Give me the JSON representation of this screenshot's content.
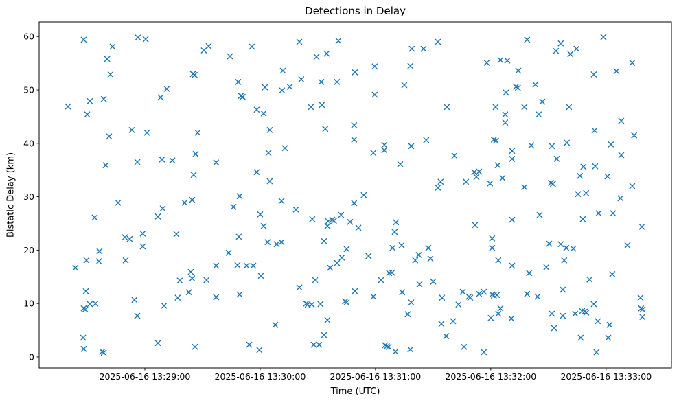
{
  "figure": {
    "background_color": "#ffffff",
    "text_color": "#000000",
    "spine_color": "#000000"
  },
  "chart": {
    "title": "Detections in Delay",
    "xlabel": "Time (UTC)",
    "ylabel": "Bistatic Delay (km)"
  },
  "chart_data": {
    "type": "scatter",
    "title": "Detections in Delay",
    "xlabel": "Time (UTC)",
    "ylabel": "Bistatic Delay (km)",
    "marker": "x",
    "marker_color": "#1f77b4",
    "grid": false,
    "legend": null,
    "x_unit": "seconds after 2025-06-16 13:28:00 UTC",
    "xlim": [
      5,
      334
    ],
    "ylim": [
      -2.06,
      62.73
    ],
    "x_ticks": [
      {
        "value": 60,
        "label": "2025-06-16 13:29:00"
      },
      {
        "value": 120,
        "label": "2025-06-16 13:30:00"
      },
      {
        "value": 180,
        "label": "2025-06-16 13:31:00"
      },
      {
        "value": 240,
        "label": "2025-06-16 13:32:00"
      },
      {
        "value": 300,
        "label": "2025-06-16 13:33:00"
      }
    ],
    "y_ticks": [
      {
        "value": 0,
        "label": "0"
      },
      {
        "value": 10,
        "label": "10"
      },
      {
        "value": 20,
        "label": "20"
      },
      {
        "value": 30,
        "label": "30"
      },
      {
        "value": 40,
        "label": "40"
      },
      {
        "value": 50,
        "label": "50"
      },
      {
        "value": 60,
        "label": "60"
      }
    ],
    "points": [
      [
        28.2,
        59.4
      ],
      [
        43.2,
        58.1
      ],
      [
        40.4,
        55.8
      ],
      [
        42.1,
        52.9
      ],
      [
        56.4,
        59.8
      ],
      [
        60.4,
        59.5
      ],
      [
        85.0,
        53.0
      ],
      [
        85.9,
        52.8
      ],
      [
        71.4,
        50.2
      ],
      [
        68.2,
        48.6
      ],
      [
        31.4,
        47.9
      ],
      [
        38.6,
        48.3
      ],
      [
        20.0,
        46.9
      ],
      [
        30.0,
        45.4
      ],
      [
        53.2,
        42.5
      ],
      [
        61.1,
        42.0
      ],
      [
        41.4,
        41.3
      ],
      [
        86.4,
        38.0
      ],
      [
        56.1,
        36.5
      ],
      [
        68.9,
        37.0
      ],
      [
        74.3,
        36.8
      ],
      [
        39.6,
        35.9
      ],
      [
        85.4,
        34.1
      ],
      [
        90.7,
        57.4
      ],
      [
        93.2,
        58.2
      ],
      [
        104.3,
        56.3
      ],
      [
        115.7,
        58.1
      ],
      [
        140.4,
        59.0
      ],
      [
        160.7,
        59.2
      ],
      [
        149.3,
        56.2
      ],
      [
        154.6,
        56.8
      ],
      [
        131.8,
        53.6
      ],
      [
        108.6,
        51.5
      ],
      [
        122.5,
        50.5
      ],
      [
        131.4,
        49.9
      ],
      [
        135.4,
        50.6
      ],
      [
        141.4,
        52.0
      ],
      [
        151.8,
        51.5
      ],
      [
        160.0,
        51.5
      ],
      [
        110.0,
        48.9
      ],
      [
        110.9,
        48.7
      ],
      [
        118.2,
        46.3
      ],
      [
        121.8,
        45.6
      ],
      [
        146.4,
        46.8
      ],
      [
        152.1,
        47.2
      ],
      [
        125.0,
        42.5
      ],
      [
        153.9,
        42.7
      ],
      [
        87.5,
        42.0
      ],
      [
        132.9,
        39.1
      ],
      [
        124.3,
        38.2
      ],
      [
        97.1,
        36.4
      ],
      [
        118.2,
        34.6
      ],
      [
        125.0,
        32.9
      ],
      [
        212.5,
        59.0
      ],
      [
        198.9,
        57.7
      ],
      [
        205.0,
        57.7
      ],
      [
        237.9,
        55.1
      ],
      [
        245.0,
        55.6
      ],
      [
        248.6,
        55.5
      ],
      [
        179.6,
        54.4
      ],
      [
        169.3,
        53.3
      ],
      [
        198.2,
        54.5
      ],
      [
        195.0,
        50.9
      ],
      [
        179.6,
        49.1
      ],
      [
        247.9,
        49.5
      ],
      [
        217.1,
        46.8
      ],
      [
        242.5,
        46.8
      ],
      [
        247.5,
        45.4
      ],
      [
        247.5,
        43.9
      ],
      [
        168.9,
        43.4
      ],
      [
        168.9,
        40.7
      ],
      [
        206.4,
        40.6
      ],
      [
        184.6,
        39.7
      ],
      [
        184.6,
        38.7
      ],
      [
        198.6,
        39.5
      ],
      [
        178.9,
        38.2
      ],
      [
        241.6,
        40.7
      ],
      [
        242.7,
        40.5
      ],
      [
        221.1,
        37.7
      ],
      [
        192.9,
        36.1
      ],
      [
        243.6,
        35.9
      ],
      [
        231.4,
        34.6
      ],
      [
        233.9,
        34.7
      ],
      [
        232.5,
        33.7
      ],
      [
        227.1,
        32.8
      ],
      [
        239.6,
        32.5
      ],
      [
        246.1,
        33.5
      ],
      [
        213.9,
        32.8
      ],
      [
        212.5,
        31.7
      ],
      [
        258.9,
        59.4
      ],
      [
        298.6,
        59.9
      ],
      [
        276.4,
        58.7
      ],
      [
        273.9,
        57.3
      ],
      [
        284.6,
        57.7
      ],
      [
        281.4,
        56.7
      ],
      [
        313.6,
        55.1
      ],
      [
        293.6,
        52.9
      ],
      [
        305.4,
        53.5
      ],
      [
        254.3,
        53.6
      ],
      [
        253.1,
        50.6
      ],
      [
        254.1,
        50.4
      ],
      [
        263.2,
        51.0
      ],
      [
        266.8,
        47.8
      ],
      [
        257.5,
        46.8
      ],
      [
        280.7,
        46.8
      ],
      [
        265.0,
        45.4
      ],
      [
        307.9,
        44.2
      ],
      [
        294.0,
        42.4
      ],
      [
        314.6,
        41.5
      ],
      [
        261.1,
        39.6
      ],
      [
        271.8,
        39.5
      ],
      [
        279.6,
        40.1
      ],
      [
        302.5,
        39.8
      ],
      [
        251.1,
        38.6
      ],
      [
        251.1,
        37.1
      ],
      [
        307.9,
        37.8
      ],
      [
        274.3,
        37.1
      ],
      [
        288.2,
        35.6
      ],
      [
        294.3,
        35.7
      ],
      [
        286.4,
        33.9
      ],
      [
        300.7,
        33.8
      ],
      [
        271.3,
        32.6
      ],
      [
        272.3,
        32.4
      ],
      [
        257.5,
        31.8
      ],
      [
        313.6,
        32.0
      ],
      [
        46.1,
        28.9
      ],
      [
        33.9,
        26.1
      ],
      [
        80.7,
        28.9
      ],
      [
        84.6,
        29.4
      ],
      [
        69.3,
        27.8
      ],
      [
        66.8,
        26.3
      ],
      [
        58.9,
        23.1
      ],
      [
        49.6,
        22.4
      ],
      [
        52.1,
        22.1
      ],
      [
        58.9,
        20.7
      ],
      [
        76.4,
        23.0
      ],
      [
        36.4,
        19.8
      ],
      [
        29.6,
        18.1
      ],
      [
        36.1,
        17.9
      ],
      [
        23.9,
        16.7
      ],
      [
        50.0,
        18.1
      ],
      [
        83.9,
        15.9
      ],
      [
        84.6,
        14.7
      ],
      [
        78.2,
        14.3
      ],
      [
        82.9,
        12.1
      ],
      [
        77.1,
        11.1
      ],
      [
        70.0,
        9.6
      ],
      [
        29.3,
        12.3
      ],
      [
        54.6,
        10.7
      ],
      [
        28.2,
        9.1
      ],
      [
        29.0,
        8.9
      ],
      [
        31.4,
        9.9
      ],
      [
        34.3,
        10.0
      ],
      [
        56.1,
        7.7
      ],
      [
        27.9,
        3.6
      ],
      [
        28.2,
        1.5
      ],
      [
        37.8,
        1.0
      ],
      [
        38.6,
        0.8
      ],
      [
        66.8,
        2.6
      ],
      [
        86.1,
        1.9
      ],
      [
        109.3,
        30.1
      ],
      [
        106.1,
        28.1
      ],
      [
        131.1,
        29.2
      ],
      [
        138.6,
        27.6
      ],
      [
        120.0,
        26.7
      ],
      [
        121.8,
        24.5
      ],
      [
        147.1,
        25.8
      ],
      [
        162.1,
        26.6
      ],
      [
        155.4,
        25.4
      ],
      [
        157.5,
        25.7
      ],
      [
        158.4,
        25.5
      ],
      [
        155.0,
        24.5
      ],
      [
        166.8,
        25.3
      ],
      [
        108.9,
        22.5
      ],
      [
        123.9,
        21.5
      ],
      [
        128.6,
        21.1
      ],
      [
        131.1,
        21.5
      ],
      [
        153.2,
        21.7
      ],
      [
        103.6,
        19.5
      ],
      [
        97.1,
        17.1
      ],
      [
        108.2,
        17.2
      ],
      [
        112.9,
        17.1
      ],
      [
        116.4,
        17.1
      ],
      [
        165.0,
        20.2
      ],
      [
        162.5,
        18.6
      ],
      [
        160.0,
        17.6
      ],
      [
        156.4,
        16.7
      ],
      [
        120.4,
        15.2
      ],
      [
        92.1,
        14.4
      ],
      [
        148.6,
        14.4
      ],
      [
        140.4,
        13.0
      ],
      [
        97.1,
        11.2
      ],
      [
        109.3,
        11.7
      ],
      [
        143.9,
        10.0
      ],
      [
        144.7,
        9.8
      ],
      [
        146.8,
        9.8
      ],
      [
        151.4,
        9.9
      ],
      [
        164.2,
        10.4
      ],
      [
        165.0,
        10.2
      ],
      [
        155.0,
        6.9
      ],
      [
        127.9,
        6.0
      ],
      [
        153.2,
        4.1
      ],
      [
        147.9,
        2.3
      ],
      [
        150.7,
        2.3
      ],
      [
        114.3,
        2.3
      ],
      [
        119.6,
        1.3
      ],
      [
        173.9,
        30.3
      ],
      [
        168.9,
        28.8
      ],
      [
        190.7,
        25.2
      ],
      [
        190.0,
        23.4
      ],
      [
        171.1,
        24.2
      ],
      [
        231.8,
        24.7
      ],
      [
        251.1,
        25.7
      ],
      [
        240.7,
        22.2
      ],
      [
        240.7,
        20.4
      ],
      [
        188.9,
        20.4
      ],
      [
        193.6,
        20.9
      ],
      [
        207.5,
        20.4
      ],
      [
        176.4,
        18.9
      ],
      [
        202.5,
        19.1
      ],
      [
        200.7,
        18.1
      ],
      [
        208.6,
        18.4
      ],
      [
        243.9,
        18.1
      ],
      [
        251.1,
        17.1
      ],
      [
        187.1,
        15.7
      ],
      [
        188.6,
        15.8
      ],
      [
        182.9,
        14.4
      ],
      [
        202.9,
        13.6
      ],
      [
        210.0,
        14.1
      ],
      [
        169.3,
        12.3
      ],
      [
        178.9,
        11.3
      ],
      [
        193.9,
        12.1
      ],
      [
        198.6,
        10.2
      ],
      [
        196.8,
        8.0
      ],
      [
        214.6,
        11.1
      ],
      [
        223.2,
        9.8
      ],
      [
        225.4,
        12.2
      ],
      [
        228.6,
        11.3
      ],
      [
        229.3,
        11.1
      ],
      [
        233.9,
        11.8
      ],
      [
        236.4,
        12.2
      ],
      [
        240.7,
        11.7
      ],
      [
        241.6,
        11.5
      ],
      [
        243.2,
        11.6
      ],
      [
        245.0,
        9.1
      ],
      [
        243.9,
        8.1
      ],
      [
        240.0,
        7.3
      ],
      [
        250.7,
        7.2
      ],
      [
        214.3,
        6.2
      ],
      [
        220.4,
        6.7
      ],
      [
        216.8,
        3.9
      ],
      [
        185.0,
        2.2
      ],
      [
        185.9,
        2.0
      ],
      [
        186.8,
        1.9
      ],
      [
        190.4,
        1.0
      ],
      [
        198.2,
        1.4
      ],
      [
        226.1,
        1.9
      ],
      [
        236.4,
        0.9
      ],
      [
        285.4,
        30.5
      ],
      [
        289.6,
        30.7
      ],
      [
        307.5,
        29.7
      ],
      [
        265.4,
        26.6
      ],
      [
        287.9,
        25.8
      ],
      [
        296.1,
        26.9
      ],
      [
        303.6,
        26.9
      ],
      [
        318.6,
        24.4
      ],
      [
        311.1,
        20.9
      ],
      [
        270.4,
        21.2
      ],
      [
        276.4,
        21.1
      ],
      [
        279.3,
        20.4
      ],
      [
        282.9,
        20.3
      ],
      [
        278.2,
        18.1
      ],
      [
        268.9,
        16.8
      ],
      [
        260.0,
        15.7
      ],
      [
        303.2,
        15.5
      ],
      [
        291.4,
        14.5
      ],
      [
        277.5,
        12.6
      ],
      [
        258.9,
        11.8
      ],
      [
        264.3,
        11.3
      ],
      [
        293.6,
        9.9
      ],
      [
        317.9,
        11.1
      ],
      [
        318.2,
        9.1
      ],
      [
        319.0,
        8.9
      ],
      [
        318.9,
        7.5
      ],
      [
        271.8,
        8.1
      ],
      [
        277.5,
        7.7
      ],
      [
        283.9,
        8.1
      ],
      [
        287.5,
        8.6
      ],
      [
        288.9,
        8.5
      ],
      [
        289.7,
        8.3
      ],
      [
        295.7,
        6.7
      ],
      [
        301.8,
        6.0
      ],
      [
        272.9,
        5.4
      ],
      [
        286.8,
        3.6
      ],
      [
        301.1,
        3.6
      ],
      [
        295.0,
        0.9
      ]
    ]
  }
}
